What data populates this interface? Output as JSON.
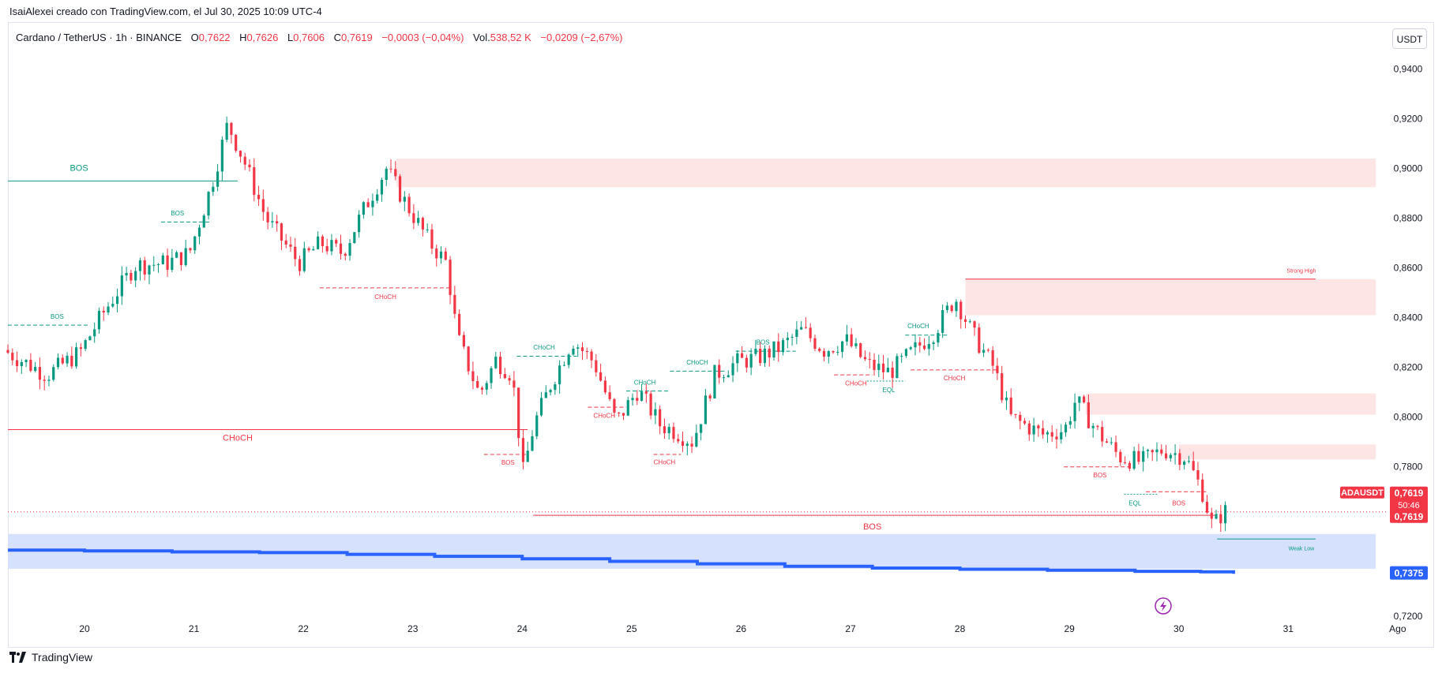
{
  "header": {
    "caption": "IsaiAlexei creado con TradingView.com, el Jul 30, 2025 10:09 UTC-4"
  },
  "legend": {
    "symbol": "Cardano / TetherUS · 1h · BINANCE",
    "o_label": "O",
    "o_value": "0,7622",
    "h_label": "H",
    "h_value": "0,7626",
    "l_label": "L",
    "l_value": "0,7606",
    "c_label": "C",
    "c_value": "0,7619",
    "change": "−0,0003 (−0,04%)",
    "vol_label": "Vol.",
    "vol_value": "538,52 K",
    "vol_change": "−0,0209 (−2,67%)"
  },
  "toolbar": {
    "currency": "USDT"
  },
  "footer": {
    "brand": "TradingView"
  },
  "colors": {
    "up": "#089981",
    "down": "#f23645",
    "zone_red": "#fde4e5",
    "zone_blue": "#d6e2fd",
    "blue_line": "#2962ff",
    "grid_text": "#131722"
  },
  "chart_data": {
    "type": "candlestick",
    "title": "Cardano / TetherUS · 1h · BINANCE",
    "ylim": [
      0.712,
      0.95
    ],
    "yticks": [
      {
        "v": 0.94,
        "label": "0,9400"
      },
      {
        "v": 0.92,
        "label": "0,9200"
      },
      {
        "v": 0.9,
        "label": "0,9000"
      },
      {
        "v": 0.88,
        "label": "0,8800"
      },
      {
        "v": 0.86,
        "label": "0,8600"
      },
      {
        "v": 0.84,
        "label": "0,8400"
      },
      {
        "v": 0.82,
        "label": "0,8200"
      },
      {
        "v": 0.8,
        "label": "0,8000"
      },
      {
        "v": 0.78,
        "label": "0,7800"
      },
      {
        "v": 0.72,
        "label": "0,7200"
      }
    ],
    "xlim": [
      19.3,
      31.9
    ],
    "xticks": [
      {
        "t": 20,
        "label": "20"
      },
      {
        "t": 21,
        "label": "21"
      },
      {
        "t": 22,
        "label": "22"
      },
      {
        "t": 23,
        "label": "23"
      },
      {
        "t": 24,
        "label": "24"
      },
      {
        "t": 25,
        "label": "25"
      },
      {
        "t": 26,
        "label": "26"
      },
      {
        "t": 27,
        "label": "27"
      },
      {
        "t": 28,
        "label": "28"
      },
      {
        "t": 29,
        "label": "29"
      },
      {
        "t": 30,
        "label": "30"
      },
      {
        "t": 31,
        "label": "31"
      },
      {
        "t": 32,
        "label": "Ago"
      }
    ],
    "price_path": [
      [
        19.3,
        0.827
      ],
      [
        19.7,
        0.817
      ],
      [
        20.0,
        0.826
      ],
      [
        20.2,
        0.841
      ],
      [
        20.5,
        0.861
      ],
      [
        20.8,
        0.862
      ],
      [
        21.0,
        0.866
      ],
      [
        21.2,
        0.893
      ],
      [
        21.35,
        0.918
      ],
      [
        21.5,
        0.903
      ],
      [
        21.7,
        0.88
      ],
      [
        22.0,
        0.862
      ],
      [
        22.2,
        0.87
      ],
      [
        22.4,
        0.866
      ],
      [
        22.6,
        0.884
      ],
      [
        22.8,
        0.9
      ],
      [
        22.95,
        0.888
      ],
      [
        23.2,
        0.87
      ],
      [
        23.35,
        0.862
      ],
      [
        23.45,
        0.832
      ],
      [
        23.65,
        0.809
      ],
      [
        23.8,
        0.823
      ],
      [
        23.95,
        0.817
      ],
      [
        24.05,
        0.778
      ],
      [
        24.15,
        0.797
      ],
      [
        24.3,
        0.813
      ],
      [
        24.5,
        0.831
      ],
      [
        24.7,
        0.822
      ],
      [
        24.9,
        0.798
      ],
      [
        25.1,
        0.811
      ],
      [
        25.3,
        0.797
      ],
      [
        25.45,
        0.794
      ],
      [
        25.6,
        0.79
      ],
      [
        25.8,
        0.817
      ],
      [
        26.0,
        0.822
      ],
      [
        26.2,
        0.824
      ],
      [
        26.4,
        0.828
      ],
      [
        26.6,
        0.835
      ],
      [
        26.8,
        0.827
      ],
      [
        27.0,
        0.831
      ],
      [
        27.2,
        0.821
      ],
      [
        27.4,
        0.818
      ],
      [
        27.6,
        0.826
      ],
      [
        27.8,
        0.834
      ],
      [
        28.0,
        0.848
      ],
      [
        28.15,
        0.834
      ],
      [
        28.35,
        0.82
      ],
      [
        28.5,
        0.8
      ],
      [
        28.8,
        0.793
      ],
      [
        29.0,
        0.795
      ],
      [
        29.1,
        0.807
      ],
      [
        29.3,
        0.794
      ],
      [
        29.5,
        0.784
      ],
      [
        29.7,
        0.782
      ],
      [
        29.9,
        0.787
      ],
      [
        30.1,
        0.784
      ],
      [
        30.25,
        0.771
      ],
      [
        30.35,
        0.756
      ],
      [
        30.45,
        0.762
      ]
    ],
    "price_tags": [
      {
        "v": 0.7619,
        "value": "0,7619",
        "countdown": "50:46",
        "symbol": "ADAUSDT",
        "color": "#f23645"
      },
      {
        "v": 0.7375,
        "value": "0,7375",
        "color": "#2962ff"
      }
    ],
    "zones": [
      {
        "x1": 22.85,
        "x2": 31.8,
        "y1": 0.8925,
        "y2": 0.904,
        "color": "red"
      },
      {
        "x1": 28.05,
        "x2": 31.8,
        "y1": 0.841,
        "y2": 0.8555,
        "color": "red"
      },
      {
        "x1": 29.15,
        "x2": 31.8,
        "y1": 0.801,
        "y2": 0.8095,
        "color": "red"
      },
      {
        "x1": 30.0,
        "x2": 31.8,
        "y1": 0.783,
        "y2": 0.789,
        "color": "red"
      },
      {
        "x1": 19.3,
        "x2": 31.8,
        "y1": 0.739,
        "y2": 0.753,
        "color": "blue"
      }
    ],
    "structure_lines": [
      {
        "label": "BOS",
        "x1": 19.3,
        "x2": 21.4,
        "y": 0.895,
        "color": "teal",
        "style": "solid",
        "lx": 19.95,
        "ly": 0.899,
        "size": 11
      },
      {
        "label": "BOS",
        "x1": 20.7,
        "x2": 21.15,
        "y": 0.8785,
        "color": "teal",
        "style": "dashed",
        "lx": 20.85,
        "ly": 0.8812,
        "size": 8
      },
      {
        "label": "BOS",
        "x1": 19.3,
        "x2": 20.05,
        "y": 0.837,
        "color": "teal",
        "style": "dashed",
        "lx": 19.75,
        "ly": 0.8395,
        "size": 8
      },
      {
        "label": "CHoCH",
        "x1": 22.15,
        "x2": 23.35,
        "y": 0.852,
        "color": "red",
        "style": "dashed",
        "lx": 22.75,
        "ly": 0.8475,
        "size": 8
      },
      {
        "label": "CHoCH",
        "x1": 19.3,
        "x2": 24.05,
        "y": 0.795,
        "color": "red",
        "style": "solid",
        "lx": 21.4,
        "ly": 0.7905,
        "size": 11
      },
      {
        "label": "CHoCH",
        "x1": 23.95,
        "x2": 24.5,
        "y": 0.8245,
        "color": "teal",
        "style": "dashed",
        "lx": 24.2,
        "ly": 0.8272,
        "size": 8
      },
      {
        "label": "BOS",
        "x1": 23.65,
        "x2": 24.05,
        "y": 0.785,
        "color": "red",
        "style": "dashed",
        "lx": 23.87,
        "ly": 0.7808,
        "size": 8
      },
      {
        "label": "CHoCH",
        "x1": 24.6,
        "x2": 24.95,
        "y": 0.804,
        "color": "red",
        "style": "dashed",
        "lx": 24.75,
        "ly": 0.7998,
        "size": 8
      },
      {
        "label": "CHoCH",
        "x1": 24.95,
        "x2": 25.35,
        "y": 0.8105,
        "color": "teal",
        "style": "dashed",
        "lx": 25.12,
        "ly": 0.813,
        "size": 8
      },
      {
        "label": "CHoCH",
        "x1": 25.2,
        "x2": 25.45,
        "y": 0.785,
        "color": "red",
        "style": "dashed",
        "lx": 25.3,
        "ly": 0.781,
        "size": 8
      },
      {
        "label": "CHoCH",
        "x1": 25.35,
        "x2": 25.85,
        "y": 0.8185,
        "color": "teal",
        "style": "dashed",
        "lx": 25.6,
        "ly": 0.8212,
        "size": 8
      },
      {
        "label": "BOS",
        "x1": 25.95,
        "x2": 26.5,
        "y": 0.8265,
        "color": "teal",
        "style": "dashed",
        "lx": 26.2,
        "ly": 0.8292,
        "size": 8
      },
      {
        "label": "CHoCH",
        "x1": 26.85,
        "x2": 27.2,
        "y": 0.817,
        "color": "red",
        "style": "dashed",
        "lx": 27.05,
        "ly": 0.8128,
        "size": 8
      },
      {
        "label": "EQL",
        "x1": 27.15,
        "x2": 27.5,
        "y": 0.8145,
        "color": "teal",
        "style": "dotted",
        "lx": 27.35,
        "ly": 0.81,
        "size": 8
      },
      {
        "label": "CHoCH",
        "x1": 27.5,
        "x2": 27.9,
        "y": 0.833,
        "color": "teal",
        "style": "dashed",
        "lx": 27.62,
        "ly": 0.8357,
        "size": 8
      },
      {
        "label": "CHoCH",
        "x1": 27.55,
        "x2": 28.35,
        "y": 0.819,
        "color": "red",
        "style": "dashed",
        "lx": 27.95,
        "ly": 0.8148,
        "size": 8
      },
      {
        "label": "Strong High",
        "x1": 28.05,
        "x2": 31.25,
        "y": 0.8555,
        "color": "red",
        "style": "solid",
        "lx": 31.12,
        "ly": 0.8582,
        "size": 7
      },
      {
        "label": "BOS",
        "x1": 28.95,
        "x2": 29.55,
        "y": 0.78,
        "color": "red",
        "style": "dashed",
        "lx": 29.28,
        "ly": 0.7758,
        "size": 8
      },
      {
        "label": "EQL",
        "x1": 29.5,
        "x2": 29.8,
        "y": 0.769,
        "color": "teal",
        "style": "dotted",
        "lx": 29.6,
        "ly": 0.7645,
        "size": 8
      },
      {
        "label": "BOS",
        "x1": 29.7,
        "x2": 30.25,
        "y": 0.77,
        "color": "red",
        "style": "dashed",
        "lx": 30.0,
        "ly": 0.7645,
        "size": 8
      },
      {
        "label": "BOS",
        "x1": 24.1,
        "x2": 30.35,
        "y": 0.7605,
        "color": "red",
        "style": "solid",
        "lx": 27.2,
        "ly": 0.7548,
        "size": 11
      },
      {
        "label": "Weak Low",
        "x1": 30.35,
        "x2": 31.25,
        "y": 0.751,
        "color": "teal",
        "style": "solid",
        "lx": 31.12,
        "ly": 0.7465,
        "size": 7
      }
    ],
    "blue_line": [
      [
        19.3,
        0.7465
      ],
      [
        20.0,
        0.7462
      ],
      [
        20.8,
        0.7458
      ],
      [
        21.6,
        0.7455
      ],
      [
        22.4,
        0.7448
      ],
      [
        23.2,
        0.744
      ],
      [
        24.0,
        0.743
      ],
      [
        24.8,
        0.742
      ],
      [
        25.6,
        0.741
      ],
      [
        26.4,
        0.74
      ],
      [
        27.2,
        0.7393
      ],
      [
        28.0,
        0.7388
      ],
      [
        28.8,
        0.7384
      ],
      [
        29.6,
        0.738
      ],
      [
        30.2,
        0.7378
      ],
      [
        30.5,
        0.737
      ]
    ]
  }
}
